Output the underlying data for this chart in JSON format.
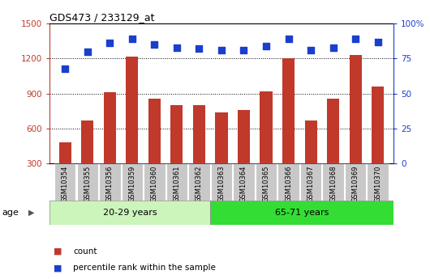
{
  "title": "GDS473 / 233129_at",
  "categories": [
    "GSM10354",
    "GSM10355",
    "GSM10356",
    "GSM10359",
    "GSM10360",
    "GSM10361",
    "GSM10362",
    "GSM10363",
    "GSM10364",
    "GSM10365",
    "GSM10366",
    "GSM10367",
    "GSM10368",
    "GSM10369",
    "GSM10370"
  ],
  "counts": [
    480,
    665,
    910,
    1220,
    855,
    800,
    800,
    740,
    760,
    920,
    1205,
    665,
    855,
    1230,
    960
  ],
  "percentile_ranks": [
    68,
    80,
    86,
    89,
    85,
    83,
    82,
    81,
    81,
    84,
    89,
    81,
    83,
    89,
    87
  ],
  "group1_label": "20-29 years",
  "group1_count": 7,
  "group2_label": "65-71 years",
  "group2_count": 8,
  "age_label": "age",
  "bar_color": "#c0392b",
  "scatter_color": "#1a3fcc",
  "group1_bg": "#ccf5bb",
  "group2_bg": "#33dd33",
  "tick_bg": "#c8c8c8",
  "ylim_left": [
    300,
    1500
  ],
  "ylim_right": [
    0,
    100
  ],
  "yticks_left": [
    300,
    600,
    900,
    1200,
    1500
  ],
  "yticks_right": [
    0,
    25,
    50,
    75,
    100
  ],
  "legend_count_label": "count",
  "legend_pct_label": "percentile rank within the sample",
  "figsize": [
    5.3,
    3.45
  ],
  "dpi": 100
}
